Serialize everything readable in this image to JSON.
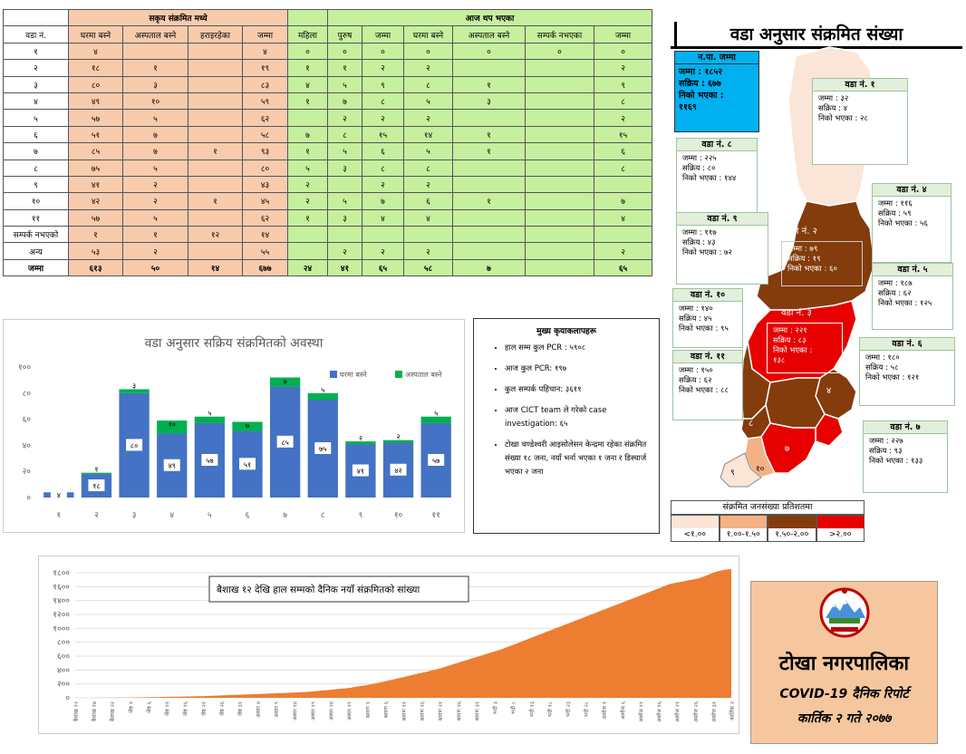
{
  "table": {
    "group_active": "सकृय संक्रमित मध्ये",
    "group_today": "आज थप भएका",
    "headers": [
      "वडा नं.",
      "घरमा बस्ने",
      "अस्पताल बस्ने",
      "हराइरहेका",
      "जम्मा",
      "महिला",
      "पुरुष",
      "जम्मा",
      "घरमा बस्ने",
      "अस्पताल बस्ने",
      "सम्पर्क नभएका",
      "जम्मा"
    ],
    "rows": [
      [
        "१",
        "४",
        "",
        "",
        "४",
        "०",
        "०",
        "०",
        "०",
        "०",
        "०",
        "०"
      ],
      [
        "२",
        "१८",
        "१",
        "",
        "१९",
        "१",
        "१",
        "२",
        "२",
        "",
        "",
        "२"
      ],
      [
        "३",
        "८०",
        "३",
        "",
        "८३",
        "४",
        "५",
        "९",
        "८",
        "१",
        "",
        "९"
      ],
      [
        "४",
        "४९",
        "१०",
        "",
        "५९",
        "१",
        "७",
        "८",
        "५",
        "३",
        "",
        "८"
      ],
      [
        "५",
        "५७",
        "५",
        "",
        "६२",
        "",
        "२",
        "२",
        "२",
        "",
        "",
        "२"
      ],
      [
        "६",
        "५१",
        "७",
        "",
        "५८",
        "७",
        "८",
        "१५",
        "१४",
        "१",
        "",
        "१५"
      ],
      [
        "७",
        "८५",
        "७",
        "१",
        "९३",
        "१",
        "५",
        "६",
        "५",
        "१",
        "",
        "६"
      ],
      [
        "८",
        "७५",
        "५",
        "",
        "८०",
        "५",
        "३",
        "८",
        "८",
        "",
        "",
        "८"
      ],
      [
        "९",
        "४१",
        "२",
        "",
        "४३",
        "२",
        "",
        "२",
        "२",
        "",
        "",
        ""
      ],
      [
        "१०",
        "४२",
        "२",
        "१",
        "४५",
        "२",
        "५",
        "७",
        "६",
        "१",
        "",
        "७"
      ],
      [
        "११",
        "५७",
        "५",
        "",
        "६२",
        "१",
        "३",
        "४",
        "४",
        "",
        "",
        "४"
      ],
      [
        "सम्पर्क नभएको",
        "१",
        "१",
        "१२",
        "१४",
        "",
        "",
        "",
        "",
        "",
        "",
        ""
      ],
      [
        "अन्य",
        "५३",
        "२",
        "",
        "५५",
        "",
        "२",
        "२",
        "२",
        "",
        "",
        "२"
      ],
      [
        "जम्मा",
        "६१३",
        "५०",
        "१४",
        "६७७",
        "२४",
        "४१",
        "६५",
        "५८",
        "७",
        "",
        "६५"
      ]
    ]
  },
  "bar_chart": {
    "chart_data": {
      "type": "bar",
      "title": "वडा अनुसार सक्रिय संक्रमितको अवस्था",
      "categories": [
        "१",
        "२",
        "३",
        "४",
        "५",
        "६",
        "७",
        "८",
        "९",
        "१०",
        "११"
      ],
      "series": [
        {
          "name": "घरमा बस्ने",
          "color": "#4472c4",
          "values": [
            4,
            18,
            80,
            49,
            57,
            51,
            85,
            75,
            41,
            42,
            57
          ],
          "labels": [
            "४",
            "१८",
            "८०",
            "४९",
            "५७",
            "५१",
            "८५",
            "७५",
            "४१",
            "४२",
            "५७"
          ]
        },
        {
          "name": "अस्पताल बस्ने",
          "color": "#00b050",
          "values": [
            0,
            1,
            3,
            10,
            5,
            7,
            7,
            5,
            2,
            2,
            5
          ],
          "labels": [
            "",
            "१",
            "३",
            "१०",
            "५",
            "७",
            "७",
            "५",
            "२",
            "२",
            "५"
          ]
        }
      ],
      "ylim": [
        0,
        100
      ],
      "yticks": [
        "०",
        "२०",
        "४०",
        "६०",
        "८०",
        "१००"
      ]
    }
  },
  "activities": {
    "title": "मुख्य कृयाकलापहरू",
    "items": [
      "हाल सम्म कुल PCR : ५९०८",
      "आज कुल PCR: १९७",
      "कुल सम्पर्क पहिचान: ३६११",
      "आज CICT team ले गरेको case investigation: ६५",
      "टोखा चण्डेश्वरी आइसोलेसन केन्द्रमा रहेका संक्रमित संख्या १८ जना, नयाँ भर्ना भएका १ जना र डिस्चार्ज भएका २ जना"
    ]
  },
  "map": {
    "title": "वडा अनुसार संक्रमित संख्या",
    "np_total": {
      "title": "न.पा. जम्मा",
      "lines": [
        "जम्मा : १८५२",
        "सक्रिय : ६७७",
        "निको भएका :",
        "११६९"
      ]
    },
    "wards": [
      {
        "title": "वडा नं. १",
        "lines": [
          "जम्मा : ३२",
          "सक्रिय : ४",
          "निको भएका : २८"
        ]
      },
      {
        "title": "वडा नं. ८",
        "lines": [
          "जम्मा : २२५",
          "सक्रिय : ८०",
          "निको भएका : १४४"
        ]
      },
      {
        "title": "वडा नं. ४",
        "lines": [
          "जम्मा : ११६",
          "सक्रिय : ५९",
          "निको भएका : ५६"
        ]
      },
      {
        "title": "वडा नं. ९",
        "lines": [
          "जम्मा : ११७",
          "सक्रिय : ४३",
          "निको भएका : ७२"
        ]
      },
      {
        "title": "वडा नं. २",
        "lines": [
          "जम्मा : ७९",
          "सक्रिय : १९",
          "निको भएका : ६०"
        ]
      },
      {
        "title": "वडा नं. ५",
        "lines": [
          "जम्मा : १८७",
          "सक्रिय : ६२",
          "निको भएका : १२५"
        ]
      },
      {
        "title": "वडा नं. १०",
        "lines": [
          "जम्मा : १४०",
          "सक्रिय : ४५",
          "निको भएका : ९५"
        ]
      },
      {
        "title": "वडा नं. ३",
        "lines": [
          "जम्मा : २२१",
          "सक्रिय : ८३",
          "निको भएका :",
          "१३८"
        ]
      },
      {
        "title": "वडा नं. ११",
        "lines": [
          "जम्मा : १५०",
          "सक्रिय : ६२",
          "निको भएका : ८८"
        ]
      },
      {
        "title": "वडा नं. ६",
        "lines": [
          "जम्मा : १८०",
          "सक्रिय : ५८",
          "निको भएका : १२१"
        ]
      },
      {
        "title": "वडा नं. ७",
        "lines": [
          "जम्मा : २२७",
          "सक्रिय : ९३",
          "निको भएका : १३३"
        ]
      }
    ],
    "map_labels": [
      "वडा नं. २",
      "वडा नं. ३",
      "४",
      "७",
      "८",
      "१०",
      "९"
    ],
    "legend": {
      "title": "संक्रमित जनसंख्या प्रतिशतमा",
      "items": [
        {
          "label": "<१.००",
          "color": "#fbe5d6"
        },
        {
          "label": "१.००-१.५०",
          "color": "#f4b183"
        },
        {
          "label": "१.५०-२.००",
          "color": "#843c0c"
        },
        {
          "label": ">२.००",
          "color": "#e60000"
        }
      ]
    }
  },
  "daily_chart": {
    "chart_data": {
      "type": "area",
      "title": "बैशाख १२ देखि हाल सम्मको दैनिक नयाँ संक्रमितको सांख्या",
      "color": "#ed7d31",
      "ylim": [
        0,
        1800
      ],
      "yticks": [
        "०",
        "२००",
        "४००",
        "६००",
        "८००",
        "१०००",
        "१२००",
        "१४००",
        "१६००",
        "१८००"
      ],
      "x_labels": [
        "बैशाख १२",
        "बैशाख १७",
        "बैशाख २२",
        "जेष्ठ १",
        "जेष्ठ ६",
        "जेष्ठ ११",
        "जेष्ठ १६",
        "जेष्ठ २१",
        "जेष्ठ २६",
        "जेष्ठ ३१",
        "असार ४",
        "असार ९",
        "असार १४",
        "असार १९",
        "असार २४",
        "असार २९",
        "श्रावण १",
        "श्रावण ६",
        "श्रावण ११",
        "श्रावण १६",
        "श्रावण २१",
        "श्रावण २६",
        "श्रावण ३१",
        "भदौ ३",
        "भदौ ८",
        "भदौ १३",
        "भदौ १८",
        "भदौ २३",
        "भदौ २८",
        "असोज १",
        "असोज ६",
        "असोज ११",
        "असोज १६",
        "असोज २१",
        "असोज २६",
        "असोज ३१",
        "कार्तिक २"
      ],
      "values": [
        0,
        0,
        0,
        0,
        0,
        0,
        0,
        1,
        1,
        1,
        1,
        2,
        2,
        3,
        3,
        4,
        4,
        5,
        6,
        7,
        8,
        9,
        10,
        11,
        12,
        13,
        14,
        15,
        16,
        17,
        18,
        19,
        20,
        21,
        22,
        23,
        25,
        27,
        29,
        31,
        33,
        35,
        37,
        39,
        41,
        43,
        45,
        47,
        49,
        51,
        53,
        55,
        57,
        59,
        61,
        63,
        65,
        67,
        69,
        71,
        73,
        75,
        78,
        81,
        84,
        87,
        90,
        95,
        100,
        105,
        110,
        115,
        120,
        125,
        130,
        135,
        140,
        148,
        156,
        164,
        172,
        180,
        190,
        200,
        210,
        220,
        232,
        244,
        256,
        268,
        280,
        292,
        304,
        316,
        328,
        340,
        352,
        364,
        376,
        388,
        400,
        412,
        428,
        444,
        460,
        476,
        492,
        508,
        524,
        540,
        556,
        572,
        588,
        604,
        620,
        636,
        652,
        668,
        684,
        700,
        720,
        740,
        760,
        780,
        800,
        820,
        840,
        860,
        880,
        900,
        920,
        940,
        960,
        980,
        1000,
        1020,
        1040,
        1060,
        1080,
        1100,
        1120,
        1140,
        1160,
        1180,
        1200,
        1220,
        1240,
        1260,
        1280,
        1300,
        1320,
        1340,
        1360,
        1380,
        1400,
        1420,
        1440,
        1460,
        1480,
        1500,
        1520,
        1540,
        1560,
        1580,
        1600,
        1620,
        1640,
        1650,
        1660,
        1670,
        1680,
        1690,
        1700,
        1710,
        1720,
        1740,
        1760,
        1780,
        1800,
        1820,
        1830,
        1840,
        1850,
        1852
      ]
    }
  },
  "branding": {
    "municipality": "टोखा नगरपालिका",
    "report_title": "COVID-19 दैनिक रिपोर्ट",
    "date": "कार्तिक २ गते २०७७"
  }
}
